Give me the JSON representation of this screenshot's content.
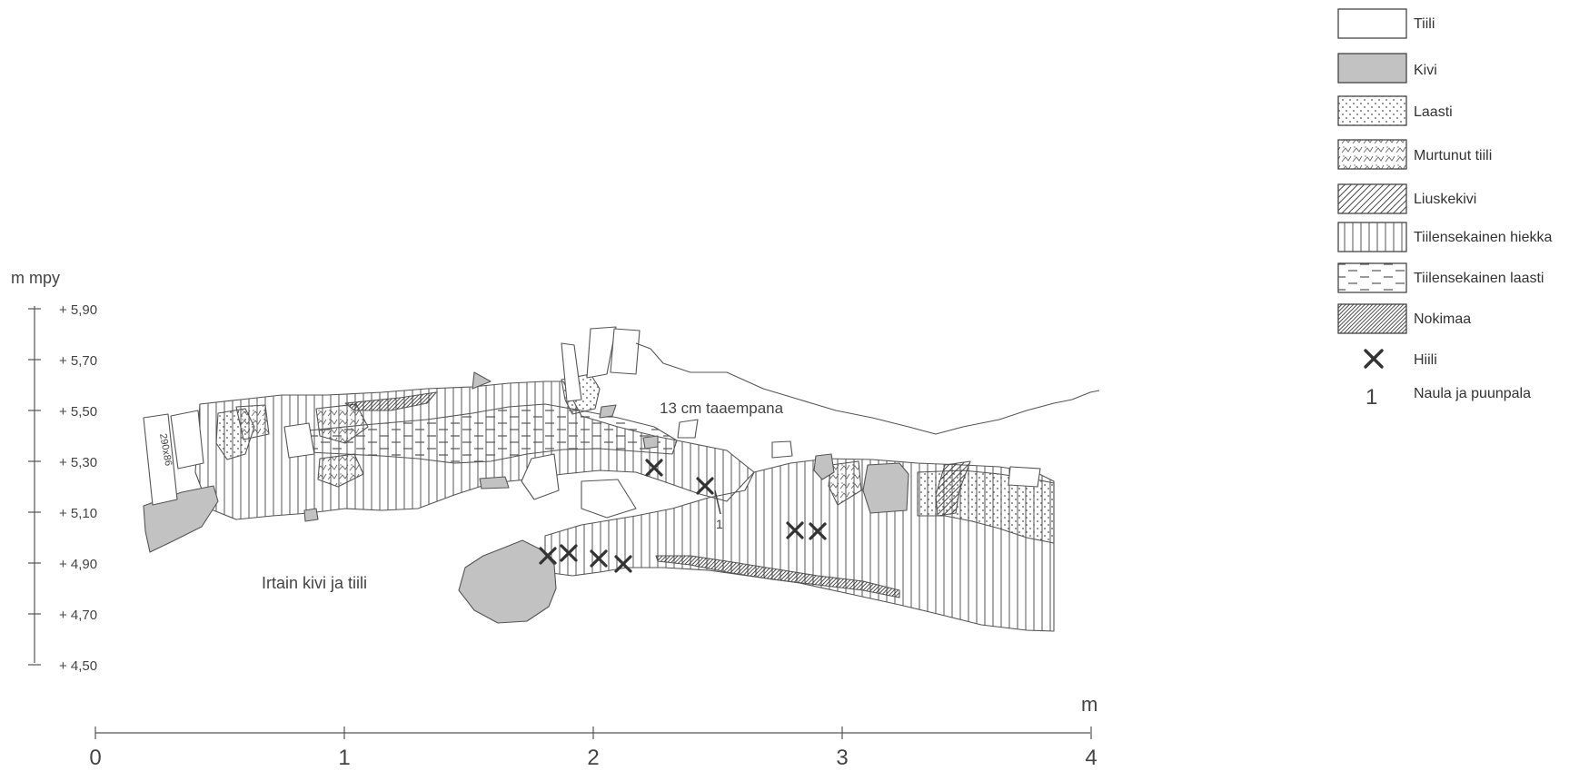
{
  "vertical_axis": {
    "unit_label": "m mpy",
    "ticks": [
      "+ 5,90",
      "+ 5,70",
      "+ 5,50",
      "+ 5,30",
      "+ 5,10",
      "+ 4,90",
      "+ 4,70",
      "+ 4,50"
    ]
  },
  "horizontal_axis": {
    "unit_label": "m",
    "ticks": [
      "0",
      "1",
      "2",
      "3",
      "4"
    ]
  },
  "section": {
    "behind_note": "13 cm taaempana",
    "loose_note": "Irtain kivi ja tiili",
    "brick_size": "290x86",
    "nail_marker": "1"
  },
  "legend": [
    {
      "key": "tiili",
      "label": "Tiili"
    },
    {
      "key": "kivi",
      "label": "Kivi"
    },
    {
      "key": "laasti",
      "label": "Laasti"
    },
    {
      "key": "murtunut",
      "label": "Murtunut tiili"
    },
    {
      "key": "liuske",
      "label": "Liuskekivi"
    },
    {
      "key": "hiekka",
      "label": "Tiilensekainen hiekka"
    },
    {
      "key": "tlaasti",
      "label": "Tiilensekainen laasti"
    },
    {
      "key": "noki",
      "label": "Nokimaa"
    },
    {
      "key": "hiili",
      "label": "Hiili"
    },
    {
      "key": "naula",
      "label": "Naula ja puunpala",
      "symbol": "1"
    }
  ],
  "colors": {
    "stone_fill": "#c2c2c2",
    "line": "#444444",
    "soot": "#3a3a3a"
  }
}
